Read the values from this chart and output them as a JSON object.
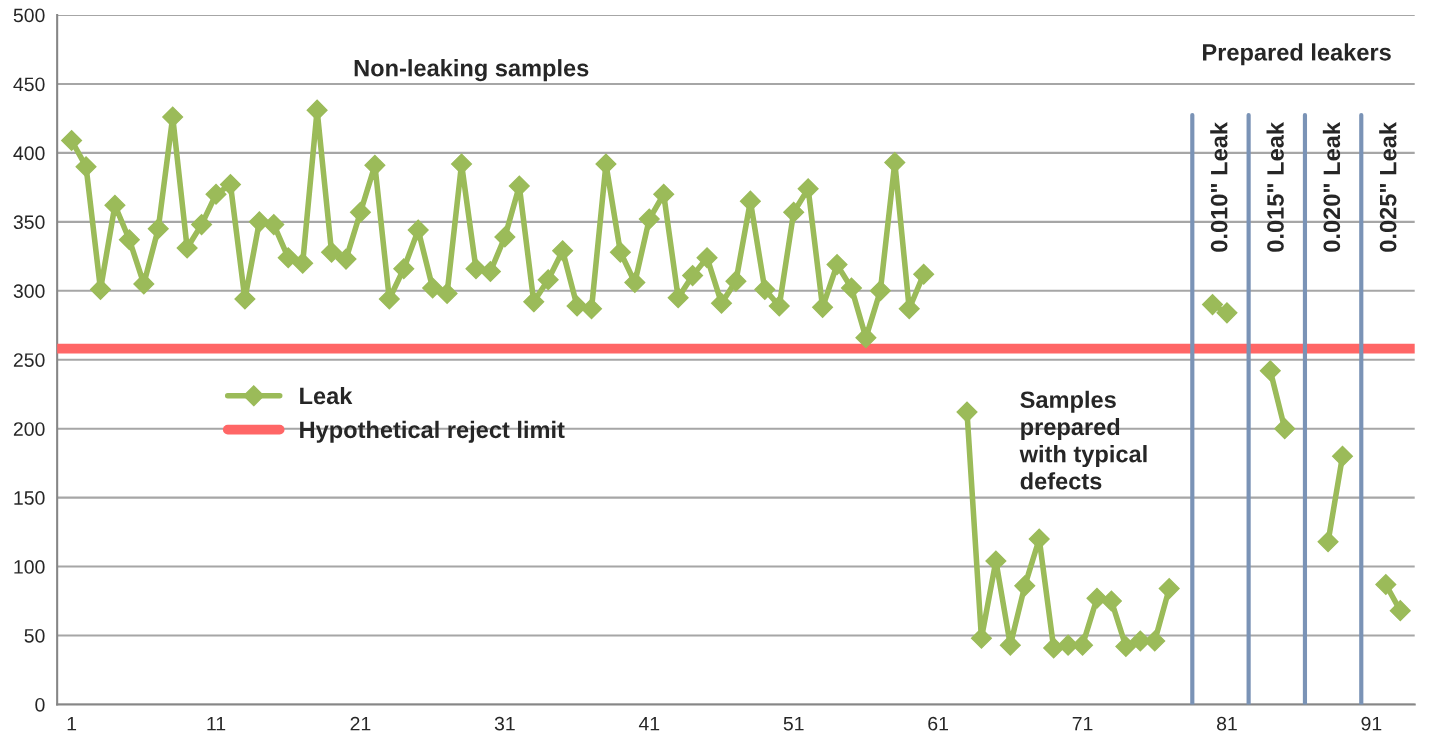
{
  "chart_data": {
    "type": "line",
    "xlim": [
      0,
      94
    ],
    "xticks": [
      1,
      11,
      21,
      31,
      41,
      51,
      61,
      71,
      81,
      91
    ],
    "ylim": [
      0,
      500
    ],
    "yticks": [
      0,
      50,
      100,
      150,
      200,
      250,
      300,
      350,
      400,
      450,
      500
    ],
    "grid": "y",
    "legend": "left",
    "marker": "diamond",
    "line_style": "solid",
    "series": [
      {
        "name": "Leak",
        "color": "#9bbb59",
        "x": [
          1,
          2,
          3,
          4,
          5,
          6,
          7,
          8,
          9,
          10,
          11,
          12,
          13,
          14,
          15,
          16,
          17,
          18,
          19,
          20,
          21,
          22,
          23,
          24,
          25,
          26,
          27,
          28,
          29,
          30,
          31,
          32,
          33,
          34,
          35,
          36,
          37,
          38,
          39,
          40,
          41,
          42,
          43,
          44,
          45,
          46,
          47,
          48,
          49,
          50,
          51,
          52,
          53,
          54,
          55,
          56,
          57,
          58,
          59,
          60,
          61,
          62,
          63,
          64,
          65,
          66,
          67,
          68,
          69,
          70,
          71,
          72,
          73,
          74,
          75,
          76,
          77,
          78,
          79,
          80,
          81,
          82,
          83,
          84,
          85,
          86,
          87,
          88,
          89,
          90,
          91,
          92,
          93
        ],
        "values": [
          409,
          390,
          301,
          362,
          337,
          305,
          345,
          426,
          331,
          348,
          370,
          377,
          294,
          350,
          348,
          324,
          320,
          431,
          328,
          323,
          357,
          391,
          294,
          316,
          344,
          302,
          298,
          392,
          316,
          314,
          339,
          376,
          292,
          308,
          329,
          289,
          287,
          392,
          328,
          306,
          352,
          370,
          295,
          311,
          324,
          291,
          307,
          365,
          301,
          289,
          357,
          374,
          288,
          319,
          302,
          266,
          300,
          393,
          287,
          312,
          null,
          null,
          212,
          48,
          104,
          43,
          86,
          120,
          41,
          43,
          43,
          77,
          75,
          42,
          46,
          46,
          84,
          null,
          null,
          290,
          284,
          null,
          null,
          242,
          200,
          null,
          null,
          118,
          180,
          null,
          null,
          87,
          68
        ]
      }
    ],
    "ref_lines": [
      {
        "axis": "y",
        "value": 258,
        "label": "Hypothetical reject limit",
        "color": "#ff6666"
      },
      {
        "axis": "x",
        "value": 78.6,
        "label": "0.010\" Leak",
        "color": "#7a93b6"
      },
      {
        "axis": "x",
        "value": 82.5,
        "label": "0.015\" Leak",
        "color": "#7a93b6"
      },
      {
        "axis": "x",
        "value": 86.4,
        "label": "0.020\" Leak",
        "color": "#7a93b6"
      },
      {
        "axis": "x",
        "value": 90.3,
        "label": "0.025\" Leak",
        "color": "#7a93b6"
      }
    ],
    "annotations": [
      "Non-leaking samples",
      "Prepared leakers",
      "Samples\nprepared\nwith typical\ndefects"
    ]
  }
}
